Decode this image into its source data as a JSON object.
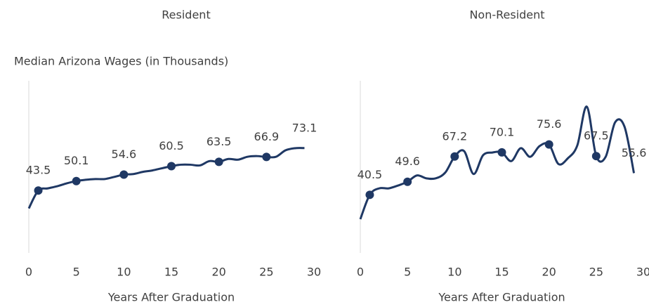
{
  "chart_data": [
    {
      "type": "line",
      "title": "Resident",
      "subtitle": "Median Arizona Wages (in Thousands)",
      "xlabel": "Years After Graduation",
      "x": [
        0,
        1,
        2,
        3,
        4,
        5,
        6,
        7,
        8,
        9,
        10,
        11,
        12,
        13,
        14,
        15,
        16,
        17,
        18,
        19,
        20,
        21,
        22,
        23,
        24,
        25,
        26,
        27,
        28,
        29
      ],
      "series": [
        {
          "color": "#1f3864",
          "values": [
            31,
            43.5,
            45,
            46.5,
            48.5,
            50.1,
            51,
            51.5,
            51.5,
            53,
            54.6,
            55,
            56.5,
            57.5,
            59,
            60.5,
            61.5,
            61.5,
            61,
            64,
            63.5,
            65.5,
            65,
            67,
            67.5,
            66.9,
            67,
            71.5,
            73,
            73.1
          ]
        }
      ],
      "marker_x": [
        1,
        5,
        10,
        15,
        20,
        25
      ],
      "labeled_x": [
        1,
        5,
        10,
        15,
        20,
        25,
        29
      ],
      "xlim": [
        0,
        30
      ],
      "xticks": [
        0,
        5,
        10,
        15,
        20,
        25,
        30
      ],
      "ylim": [
        0,
        120
      ]
    },
    {
      "type": "line",
      "title": "Non-Resident",
      "xlabel": "Years After Graduation",
      "x": [
        0,
        1,
        2,
        3,
        4,
        5,
        6,
        7,
        8,
        9,
        10,
        11,
        12,
        13,
        14,
        15,
        16,
        17,
        18,
        19,
        20,
        21,
        22,
        23,
        24,
        25,
        26,
        27,
        28,
        29
      ],
      "series": [
        {
          "color": "#1f3864",
          "values": [
            23.5,
            40.5,
            45,
            45,
            47,
            49.6,
            54,
            52,
            52,
            56,
            67.2,
            71,
            55,
            68,
            70,
            70.1,
            64,
            73,
            67,
            74.5,
            75.6,
            62,
            66,
            75,
            102,
            67.5,
            67,
            91,
            88,
            55.6
          ]
        }
      ],
      "marker_x": [
        1,
        5,
        10,
        15,
        20,
        25
      ],
      "labeled_x": [
        1,
        5,
        10,
        15,
        20,
        25,
        29
      ],
      "xlim": [
        0,
        30
      ],
      "xticks": [
        0,
        5,
        10,
        15,
        20,
        25,
        30
      ],
      "ylim": [
        0,
        120
      ]
    }
  ]
}
